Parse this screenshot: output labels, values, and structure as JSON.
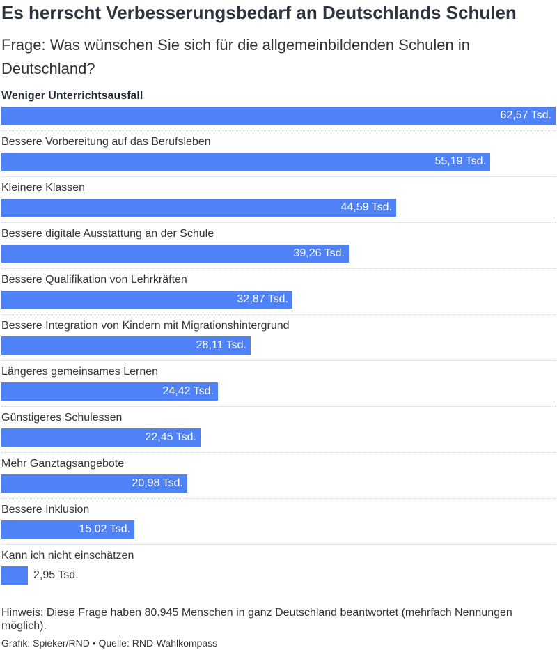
{
  "header": {
    "title": "Es herrscht Verbesserungsbedarf an Deutschlands Schulen",
    "subtitle": "Frage: Was wünschen Sie sich für die allgemeinbildenden Schulen in Deutschland?"
  },
  "chart_data": {
    "type": "bar",
    "orientation": "horizontal",
    "title": "Es herrscht Verbesserungsbedarf an Deutschlands Schulen",
    "subtitle": "Frage: Was wünschen Sie sich für die allgemeinbildenden Schulen in Deutschland?",
    "xlabel": "",
    "ylabel": "",
    "xlim": [
      0,
      62.57
    ],
    "unit": "Tsd.",
    "bar_color": "#4f82f7",
    "grid": false,
    "legend": "none",
    "categories": [
      "Weniger Unterrichtsausfall",
      "Bessere Vorbereitung auf das Berufsleben",
      "Kleinere Klassen",
      "Bessere digitale Ausstattung an der Schule",
      "Bessere Qualifikation von Lehrkräften",
      "Bessere Integration von Kindern mit Migrationshintergrund",
      "Längeres gemeinsames Lernen",
      "Günstigeres Schulessen",
      "Mehr Ganztagsangebote",
      "Bessere Inklusion",
      "Kann ich nicht einschätzen"
    ],
    "values": [
      62.57,
      55.19,
      44.59,
      39.26,
      32.87,
      28.11,
      24.42,
      22.45,
      20.98,
      15.02,
      2.95
    ],
    "value_labels": [
      "62,57 Tsd.",
      "55,19 Tsd.",
      "44,59 Tsd.",
      "39,26 Tsd.",
      "32,87 Tsd.",
      "28,11 Tsd.",
      "24,42 Tsd.",
      "22,45 Tsd.",
      "20,98 Tsd.",
      "15,02 Tsd.",
      "2,95 Tsd."
    ]
  },
  "footer": {
    "note": "Hinweis: Diese Frage haben 80.945 Menschen in ganz Deutschland beantwortet (mehrfach Nennungen möglich).",
    "credit": "Grafik: Spieker/RND • Quelle: RND-Wahlkompass"
  }
}
